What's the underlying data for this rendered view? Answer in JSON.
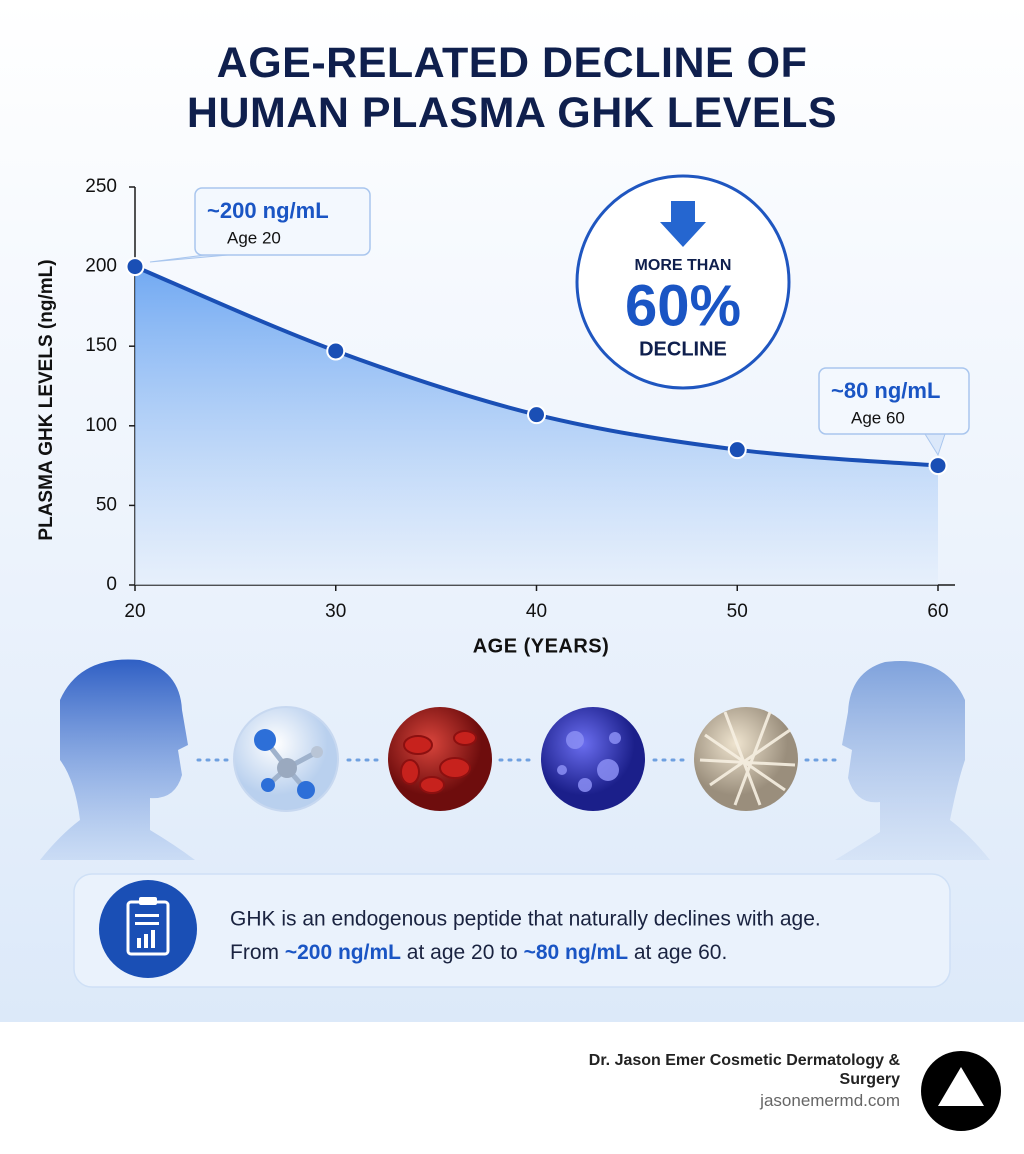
{
  "chart_data": {
    "type": "line",
    "title": "AGE-RELATED DECLINE OF HUMAN PLASMA GHK LEVELS",
    "x_label": "AGE (YEARS)",
    "y_label": "PLASMA GHK LEVELS (ng/mL)",
    "x": [
      20,
      30,
      40,
      50,
      60
    ],
    "series": [
      {
        "name": "Plasma GHK",
        "color": "#1a4fb5",
        "values": [
          200,
          147,
          107,
          85,
          75
        ]
      }
    ],
    "xlim": [
      20,
      60
    ],
    "xticks": [
      20,
      30,
      40,
      50,
      60
    ],
    "ylim": [
      0,
      250
    ],
    "yticks": [
      0,
      50,
      100,
      150,
      200,
      250
    ],
    "grid": false,
    "annotations": [
      {
        "label": "~200 ng/mL",
        "sublabel": "Age 20"
      },
      {
        "label": "~80 ng/mL",
        "sublabel": "Age 60"
      }
    ],
    "callout": [
      "MORE THAN",
      "60%",
      "DECLINE"
    ]
  },
  "info_box": {
    "line1": "GHK is an endogenous peptide that naturally declines with age.",
    "line2": [
      "From ",
      "~200 ng/mL",
      " at age 20 to ",
      "~80 ng/mL",
      " at age 60."
    ]
  },
  "footer": {
    "organization": "Dr. Jason Emer Cosmetic Dermatology & Surgery",
    "url": "jasonemermd.com"
  }
}
